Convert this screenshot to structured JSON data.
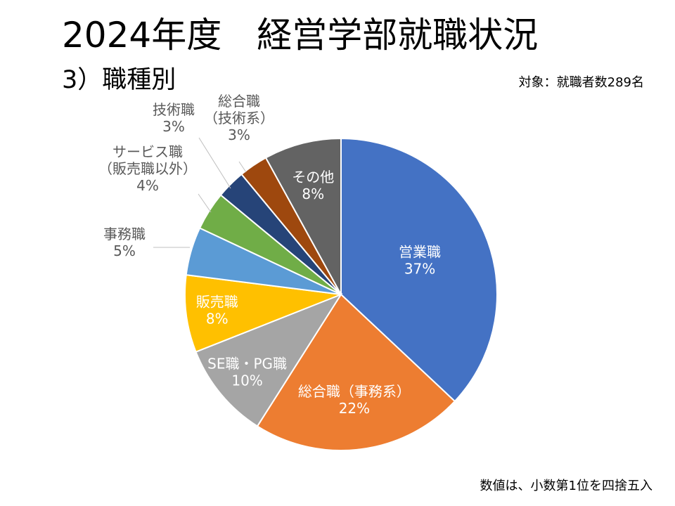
{
  "title": "2024年度　経営学部就職状況",
  "subtitle": "3）職種別",
  "target_note": "対象：就職者数289名",
  "rounding_note": "数値は、小数第1位を四捨五入",
  "chart_data": {
    "type": "pie",
    "title": "3）職種別",
    "unit": "%",
    "slices": [
      {
        "label": "営業職",
        "value": 37,
        "color": "#4472C4",
        "label_lines": [
          "営業職",
          "37%"
        ]
      },
      {
        "label": "総合職（事務系）",
        "value": 22,
        "color": "#ED7D31",
        "label_lines": [
          "総合職（事務系）",
          "22%"
        ]
      },
      {
        "label": "SE職・PG職",
        "value": 10,
        "color": "#A5A5A5",
        "label_lines": [
          "SE職・PG職",
          "10%"
        ]
      },
      {
        "label": "販売職",
        "value": 8,
        "color": "#FFC000",
        "label_lines": [
          "販売職",
          "8%"
        ]
      },
      {
        "label": "事務職",
        "value": 5,
        "color": "#5B9BD5",
        "label_lines": [
          "事務職",
          "5%"
        ]
      },
      {
        "label": "サービス職（販売職以外）",
        "value": 4,
        "color": "#70AD47",
        "label_lines": [
          "サービス職",
          "（販売職以外）",
          "4%"
        ]
      },
      {
        "label": "技術職",
        "value": 3,
        "color": "#264478",
        "label_lines": [
          "技術職",
          "3%"
        ]
      },
      {
        "label": "総合職（技術系）",
        "value": 3,
        "color": "#9E480E",
        "label_lines": [
          "総合職",
          "（技術系）",
          "3%"
        ]
      },
      {
        "label": "その他",
        "value": 8,
        "color": "#636363",
        "label_lines": [
          "その他",
          "8%"
        ]
      }
    ]
  }
}
